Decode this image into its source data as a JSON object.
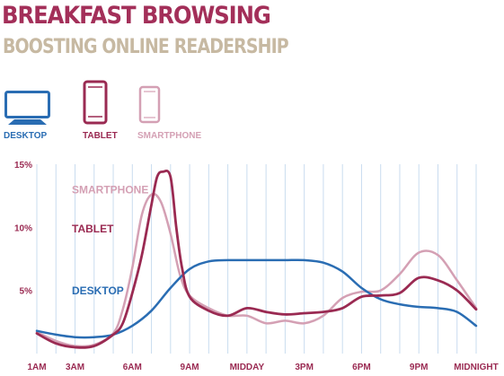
{
  "header": {
    "title": "BREAKFAST BROWSING",
    "subtitle": "BOOSTING ONLINE READERSHIP"
  },
  "colors": {
    "title": "#a32f59",
    "subtitle": "#c7b9a2",
    "desktop": "#2a6db3",
    "tablet": "#9a2a52",
    "smartphone": "#d4a0b4",
    "grid": "#c9dcef",
    "axis_text": "#9a2a52"
  },
  "legend": [
    {
      "key": "desktop",
      "label": "DESKTOP",
      "icon": "desktop-monitor-icon"
    },
    {
      "key": "tablet",
      "label": "TABLET",
      "icon": "tablet-icon"
    },
    {
      "key": "smartphone",
      "label": "SMARTPHONE",
      "icon": "smartphone-icon"
    }
  ],
  "chart_data": {
    "type": "line",
    "title": "BREAKFAST BROWSING",
    "subtitle": "BOOSTING ONLINE READERSHIP",
    "xlabel": "",
    "ylabel": "",
    "x_tick_labels": [
      "1AM",
      "3AM",
      "6AM",
      "9AM",
      "MIDDAY",
      "3PM",
      "6PM",
      "9PM",
      "MIDNIGHT"
    ],
    "x_tick_hours": [
      1,
      3,
      6,
      9,
      12,
      15,
      18,
      21,
      24
    ],
    "y_tick_labels": [
      "5%",
      "10%",
      "15%"
    ],
    "y_tick_values": [
      5,
      10,
      15
    ],
    "xlim": [
      1,
      24
    ],
    "ylim": [
      0,
      15
    ],
    "grid": "vertical, one line per hour",
    "series": [
      {
        "name": "DESKTOP",
        "key": "desktop",
        "label_y": 4.7,
        "x": [
          1,
          2,
          3,
          4,
          5,
          6,
          7,
          8,
          9,
          10,
          11,
          12,
          13,
          14,
          15,
          16,
          17,
          18,
          19,
          20,
          21,
          22,
          23,
          24
        ],
        "values": [
          1.8,
          1.5,
          1.3,
          1.3,
          1.5,
          2.2,
          3.4,
          5.2,
          6.7,
          7.3,
          7.4,
          7.4,
          7.4,
          7.4,
          7.4,
          7.2,
          6.5,
          5.2,
          4.3,
          3.9,
          3.7,
          3.6,
          3.3,
          2.2
        ]
      },
      {
        "name": "TABLET",
        "key": "tablet",
        "label_y": 9.6,
        "x": [
          1,
          2,
          3,
          4,
          5,
          5.5,
          6,
          6.5,
          7,
          7.3,
          7.6,
          8,
          8.3,
          8.6,
          9,
          10,
          11,
          12,
          13,
          14,
          15,
          16,
          17,
          18,
          19,
          20,
          21,
          22,
          23,
          24
        ],
        "values": [
          1.6,
          0.8,
          0.5,
          0.6,
          1.5,
          2.4,
          4.8,
          7.8,
          11.8,
          14.0,
          14.4,
          14.0,
          10.0,
          6.8,
          4.5,
          3.4,
          3.0,
          3.6,
          3.3,
          3.1,
          3.2,
          3.3,
          3.6,
          4.5,
          4.6,
          4.8,
          6.0,
          5.8,
          5.0,
          3.5
        ]
      },
      {
        "name": "SMARTPHONE",
        "key": "smartphone",
        "label_y": 12.7,
        "x": [
          1,
          2,
          3,
          4,
          5,
          5.5,
          6,
          6.5,
          7,
          7.5,
          8,
          8.5,
          9,
          10,
          11,
          12,
          13,
          14,
          15,
          16,
          17,
          18,
          19,
          20,
          21,
          22,
          23,
          24
        ],
        "values": [
          1.7,
          1.0,
          0.6,
          0.7,
          1.6,
          3.5,
          6.8,
          11.0,
          12.6,
          12.0,
          9.5,
          6.2,
          4.6,
          3.6,
          3.0,
          3.0,
          2.4,
          2.6,
          2.4,
          3.0,
          4.4,
          4.9,
          5.0,
          6.3,
          8.0,
          7.8,
          5.8,
          3.6
        ]
      }
    ]
  }
}
